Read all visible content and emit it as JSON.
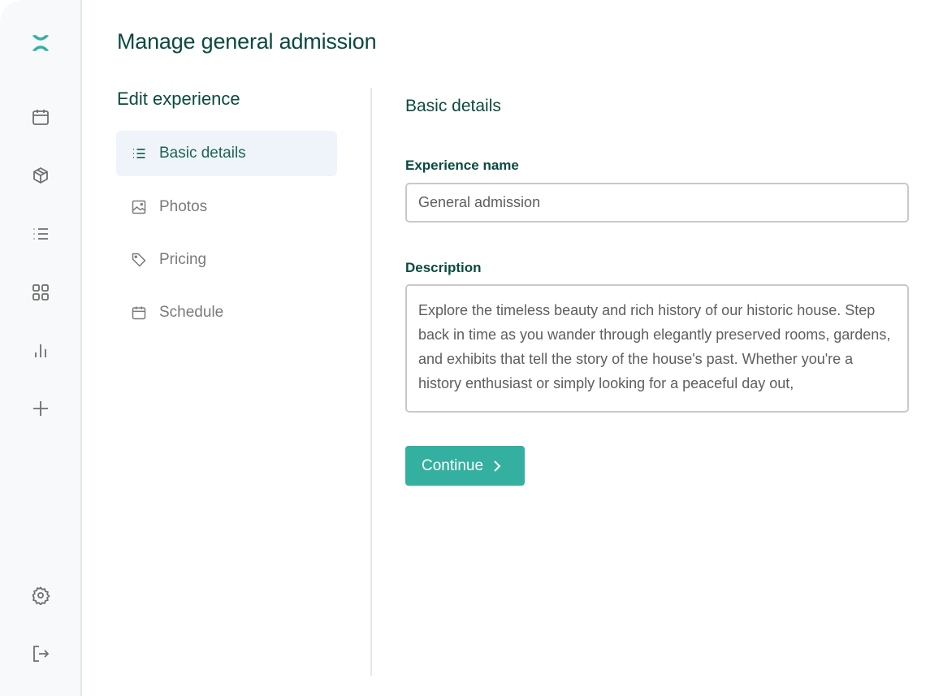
{
  "sidebar": {
    "icons": [
      "logo-icon",
      "calendar-icon",
      "box-icon",
      "list-icon",
      "grid-icon",
      "bar-chart-icon",
      "plus-icon",
      "gear-icon",
      "logout-icon"
    ]
  },
  "page": {
    "title": "Manage general admission"
  },
  "edit_nav": {
    "title": "Edit experience",
    "items": [
      {
        "label": "Basic details",
        "icon": "list-icon",
        "active": true
      },
      {
        "label": "Photos",
        "icon": "image-icon"
      },
      {
        "label": "Pricing",
        "icon": "tag-icon"
      },
      {
        "label": "Schedule",
        "icon": "calendar-icon"
      }
    ]
  },
  "form": {
    "section_title": "Basic details",
    "name_label": "Experience name",
    "name_value": "General admission",
    "description_label": "Description",
    "description_value": "Explore the timeless beauty and rich history of our historic house. Step back in time as you wander through elegantly preserved rooms, gardens, and exhibits that tell the story of the house's past. Whether you're a history enthusiast or simply looking for a peaceful day out,",
    "continue_label": "Continue"
  },
  "colors": {
    "accent": "#33b0a0",
    "heading": "#0b4a40",
    "sidebar_bg": "#f7f9fb"
  }
}
